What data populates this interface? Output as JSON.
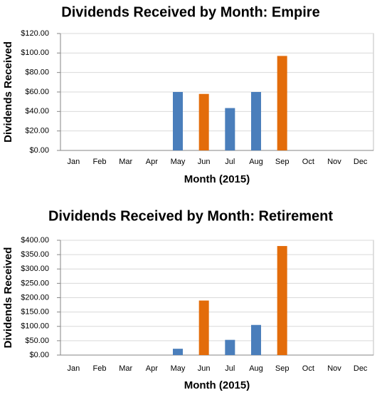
{
  "chart_data": [
    {
      "type": "bar",
      "title": "Dividends Received by Month: Empire",
      "x_label": "Month (2015)",
      "y_label": "Dividends Received",
      "categories": [
        "Jan",
        "Feb",
        "Mar",
        "Apr",
        "May",
        "Jun",
        "Jul",
        "Aug",
        "Sep",
        "Oct",
        "Nov",
        "Dec"
      ],
      "values": [
        0,
        0,
        0,
        0,
        60,
        58,
        43.5,
        60,
        97,
        0,
        0,
        0
      ],
      "colors": [
        null,
        null,
        null,
        null,
        "#4a7ebb",
        "#e36c0a",
        "#4a7ebb",
        "#4a7ebb",
        "#e36c0a",
        null,
        null,
        null
      ],
      "ylim": [
        0,
        120
      ],
      "yticks": [
        {
          "value": 0,
          "label": "$0.00"
        },
        {
          "value": 20,
          "label": "$20.00"
        },
        {
          "value": 40,
          "label": "$40.00"
        },
        {
          "value": 60,
          "label": "$60.00"
        },
        {
          "value": 80,
          "label": "$80.00"
        },
        {
          "value": 100,
          "label": "$100.00"
        },
        {
          "value": 120,
          "label": "$120.00"
        }
      ],
      "grid": true
    },
    {
      "type": "bar",
      "title": "Dividends Received by Month: Retirement",
      "x_label": "Month (2015)",
      "y_label": "Dividends Received",
      "categories": [
        "Jan",
        "Feb",
        "Mar",
        "Apr",
        "May",
        "Jun",
        "Jul",
        "Aug",
        "Sep",
        "Oct",
        "Nov",
        "Dec"
      ],
      "values": [
        0,
        0,
        0,
        0,
        22,
        190,
        53,
        105,
        380,
        0,
        0,
        0
      ],
      "colors": [
        null,
        null,
        null,
        null,
        "#4a7ebb",
        "#e36c0a",
        "#4a7ebb",
        "#4a7ebb",
        "#e36c0a",
        null,
        null,
        null
      ],
      "ylim": [
        0,
        400
      ],
      "yticks": [
        {
          "value": 0,
          "label": "$0.00"
        },
        {
          "value": 50,
          "label": "$50.00"
        },
        {
          "value": 100,
          "label": "$100.00"
        },
        {
          "value": 150,
          "label": "$150.00"
        },
        {
          "value": 200,
          "label": "$200.00"
        },
        {
          "value": 250,
          "label": "$250.00"
        },
        {
          "value": 300,
          "label": "$300.00"
        },
        {
          "value": 350,
          "label": "$350.00"
        },
        {
          "value": 400,
          "label": "$400.00"
        }
      ],
      "grid": true
    }
  ]
}
